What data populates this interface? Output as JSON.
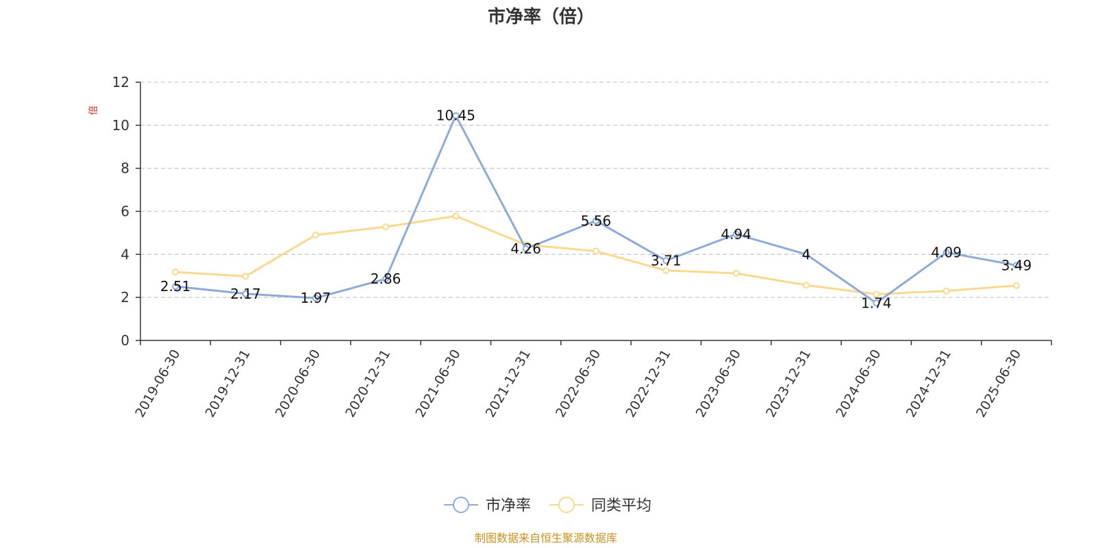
{
  "chart_data": {
    "type": "line",
    "title": "市净率（倍）",
    "unit_label": "倍",
    "categories": [
      "2019-06-30",
      "2019-12-31",
      "2020-06-30",
      "2020-12-31",
      "2021-06-30",
      "2021-12-31",
      "2022-06-30",
      "2022-12-31",
      "2023-06-30",
      "2023-12-31",
      "2024-06-30",
      "2024-12-31",
      "2025-06-30"
    ],
    "series": [
      {
        "name": "市净率",
        "color": "#8eaad8",
        "values": [
          2.51,
          2.17,
          1.97,
          2.86,
          10.45,
          4.26,
          5.56,
          3.71,
          4.94,
          4,
          1.74,
          4.09,
          3.49
        ],
        "labels": [
          "2.51",
          "2.17",
          "1.97",
          "2.86",
          "10.45",
          "4.26",
          "5.56",
          "3.71",
          "4.94",
          "4",
          "1.74",
          "4.09",
          "3.49"
        ]
      },
      {
        "name": "同类平均",
        "color": "#fad98e",
        "values": [
          3.18,
          2.98,
          4.9,
          5.28,
          5.78,
          4.45,
          4.15,
          3.25,
          3.12,
          2.57,
          2.15,
          2.3,
          2.55
        ]
      }
    ],
    "yticks": [
      0,
      2,
      4,
      6,
      8,
      10,
      12
    ],
    "ylim": [
      0,
      12
    ],
    "grid": true,
    "legend_position": "bottom-center",
    "source": "制图数据来自恒生聚源数据库",
    "source_color": "#c8921e"
  }
}
